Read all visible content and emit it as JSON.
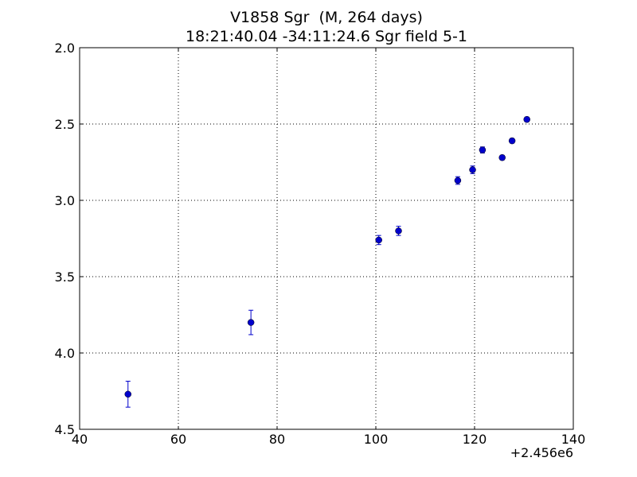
{
  "chart_data": {
    "type": "scatter",
    "title": "V1858 Sgr  (M, 264 days)",
    "subtitle": "18:21:40.04 -34:11:24.6 Sgr field 5-1",
    "x_offset_label": "+2.456e6",
    "xlim": [
      40,
      140
    ],
    "ylim": [
      4.5,
      2.0
    ],
    "y_inverted": true,
    "x_ticks": [
      40,
      60,
      80,
      100,
      120,
      140
    ],
    "x_tick_labels": [
      "40",
      "60",
      "80",
      "100",
      "120",
      "140"
    ],
    "y_ticks": [
      2.0,
      2.5,
      3.0,
      3.5,
      4.0,
      4.5
    ],
    "y_tick_labels": [
      "2.0",
      "2.5",
      "3.0",
      "3.5",
      "4.0",
      "4.5"
    ],
    "grid": true,
    "marker_color": "#0000cc",
    "points": [
      {
        "x": 49.8,
        "y": 4.27,
        "err": 0.085
      },
      {
        "x": 74.7,
        "y": 3.8,
        "err": 0.08
      },
      {
        "x": 100.6,
        "y": 3.26,
        "err": 0.03
      },
      {
        "x": 104.6,
        "y": 3.2,
        "err": 0.03
      },
      {
        "x": 116.6,
        "y": 2.87,
        "err": 0.025
      },
      {
        "x": 119.6,
        "y": 2.8,
        "err": 0.025
      },
      {
        "x": 121.6,
        "y": 2.67,
        "err": 0.02
      },
      {
        "x": 125.6,
        "y": 2.72,
        "err": 0.015
      },
      {
        "x": 127.6,
        "y": 2.61,
        "err": 0.015
      },
      {
        "x": 130.6,
        "y": 2.47,
        "err": 0.015
      }
    ]
  }
}
